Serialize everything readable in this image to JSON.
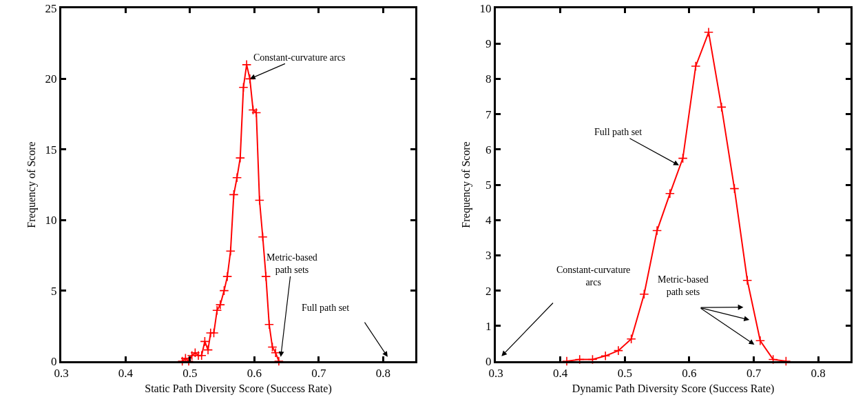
{
  "chart_data": [
    {
      "type": "line",
      "xlabel": "Static Path Diversity Score (Success Rate)",
      "ylabel": "Frequency of Score",
      "color": "#ff0000",
      "marker": "cross",
      "line_style": "solid",
      "x": [
        0.488,
        0.493,
        0.498,
        0.503,
        0.508,
        0.513,
        0.518,
        0.523,
        0.528,
        0.532,
        0.537,
        0.542,
        0.547,
        0.553,
        0.558,
        0.563,
        0.568,
        0.573,
        0.578,
        0.583,
        0.588,
        0.593,
        0.598,
        0.603,
        0.608,
        0.613,
        0.618,
        0.623,
        0.628,
        0.633,
        0.638
      ],
      "values": [
        0,
        0.2,
        0,
        0.4,
        0.6,
        0.4,
        0.4,
        1.4,
        0.8,
        2.0,
        2.0,
        3.6,
        4.0,
        5.0,
        6.0,
        7.8,
        11.8,
        13.0,
        14.4,
        19.4,
        21.0,
        20.0,
        17.8,
        17.6,
        11.4,
        8.8,
        6.0,
        2.6,
        1.0,
        0.6,
        0
      ],
      "xlim": [
        0.3,
        0.85
      ],
      "xticks": [
        0.3,
        0.4,
        0.5,
        0.6,
        0.7,
        0.8
      ],
      "ylim": [
        0,
        25
      ],
      "yticks": [
        0,
        5,
        10,
        15,
        20,
        25
      ],
      "annotations": [
        {
          "text": "Constant-curvature arcs",
          "x": 0.593,
          "y": 20.0
        },
        {
          "text": "Metric-based\npath sets",
          "x": 0.641,
          "y": 0.3
        },
        "Full path set"
      ]
    },
    {
      "type": "line",
      "xlabel": "Dynamic Path Diversity Score (Success Rate)",
      "ylabel": "Frequency of Score",
      "color": "#ff0000",
      "marker": "cross",
      "line_style": "solid",
      "x": [
        0.41,
        0.43,
        0.45,
        0.47,
        0.49,
        0.51,
        0.53,
        0.55,
        0.57,
        0.59,
        0.61,
        0.63,
        0.65,
        0.67,
        0.69,
        0.71,
        0.73,
        0.75
      ],
      "values": [
        0,
        0.05,
        0.05,
        0.15,
        0.3,
        0.63,
        1.9,
        3.7,
        4.75,
        5.75,
        8.36,
        9.32,
        7.2,
        4.89,
        2.29,
        0.58,
        0.05,
        0
      ],
      "xlim": [
        0.3,
        0.85
      ],
      "xticks": [
        0.3,
        0.4,
        0.5,
        0.6,
        0.7,
        0.8
      ],
      "ylim": [
        0,
        10
      ],
      "yticks": [
        0,
        1,
        2,
        3,
        4,
        5,
        6,
        7,
        8,
        9,
        10
      ],
      "annotations": [
        {
          "text": "Full path set",
          "x": 0.584,
          "y": 5.55
        },
        "Constant-curvature\narcs",
        "Metric-based\npath sets"
      ]
    }
  ]
}
